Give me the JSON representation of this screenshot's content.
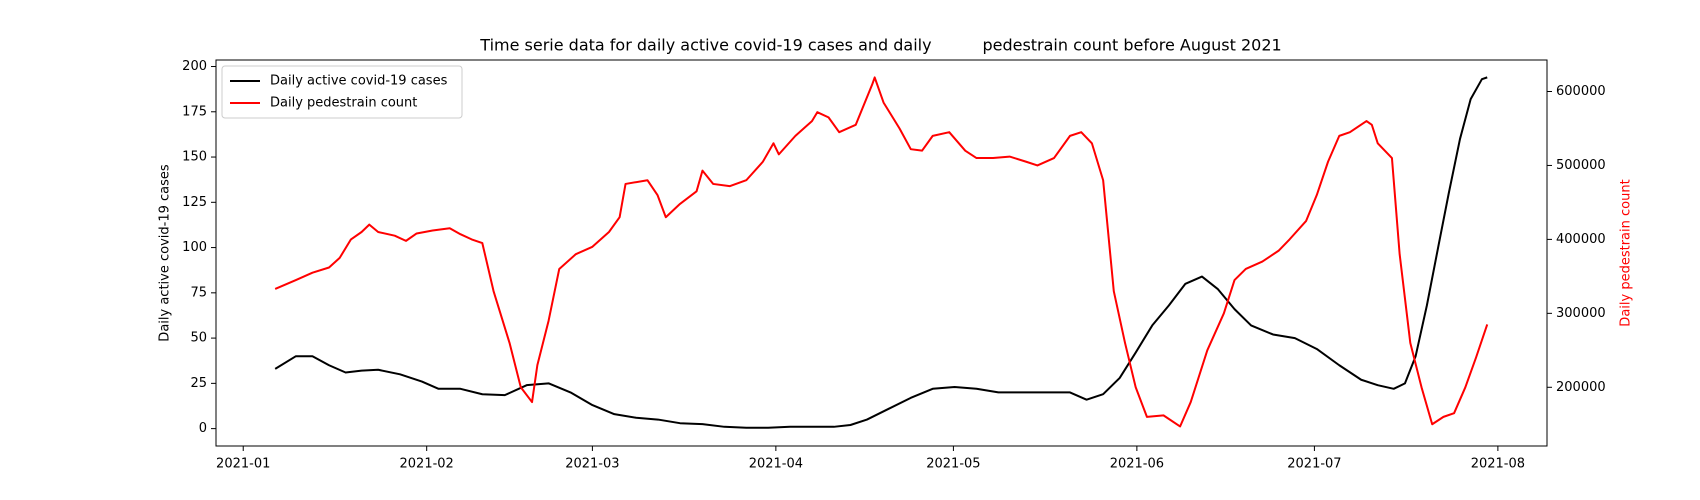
{
  "chart_data": {
    "type": "line",
    "title": "Time serie data for daily active covid-19 cases and daily          pedestrain count before August 2021",
    "y_label": "Daily active covid-19 cases",
    "y2_label": "Daily pedestrain count",
    "xlim": [
      -4.6,
      220.3
    ],
    "xticks": [
      {
        "value": 0,
        "label": "2021-01"
      },
      {
        "value": 31,
        "label": "2021-02"
      },
      {
        "value": 59,
        "label": "2021-03"
      },
      {
        "value": 90,
        "label": "2021-04"
      },
      {
        "value": 120,
        "label": "2021-05"
      },
      {
        "value": 151,
        "label": "2021-06"
      },
      {
        "value": 181,
        "label": "2021-07"
      },
      {
        "value": 212,
        "label": "2021-08"
      }
    ],
    "ylim": [
      -9.6,
      203.6
    ],
    "yticks": [
      0,
      25,
      50,
      75,
      100,
      125,
      150,
      175,
      200
    ],
    "y2lim": [
      120600,
      642600
    ],
    "y2ticks": [
      200000,
      300000,
      400000,
      500000,
      600000
    ],
    "grid": false,
    "legend": "upper left",
    "series": [
      {
        "name": "Daily active covid-19 cases",
        "color": "#000000",
        "x": [
          5.4,
          8.9,
          11.7,
          14.5,
          17.3,
          20.0,
          22.8,
          26.5,
          30.2,
          33.0,
          36.7,
          40.4,
          44.2,
          47.9,
          51.6,
          55.3,
          59.0,
          62.7,
          66.4,
          70.1,
          73.8,
          77.6,
          81.3,
          85.0,
          88.7,
          92.4,
          96.1,
          99.8,
          102.6,
          105.4,
          109.1,
          112.8,
          116.5,
          120.2,
          123.9,
          127.6,
          131.4,
          135.1,
          139.7,
          142.5,
          145.3,
          148.1,
          150.8,
          153.6,
          156.4,
          159.2,
          162.0,
          164.7,
          167.5,
          170.3,
          174.0,
          177.7,
          181.4,
          185.2,
          188.9,
          191.7,
          194.4,
          196.3,
          198.1,
          200.0,
          201.9,
          203.7,
          205.6,
          207.4,
          209.3,
          210.2
        ],
        "values": [
          33,
          40,
          40,
          35,
          31,
          32,
          32.5,
          30,
          26,
          22,
          22,
          19,
          18.5,
          24,
          25,
          20,
          13,
          8,
          6,
          5,
          3,
          2.5,
          1,
          0.5,
          0.5,
          1,
          1,
          1,
          2,
          5,
          11,
          17,
          22,
          23,
          22,
          20,
          20,
          20,
          20,
          16,
          19,
          28,
          42,
          57,
          68,
          80,
          84,
          77,
          66,
          57,
          52,
          50,
          44,
          35,
          27,
          24,
          22,
          25,
          40,
          68,
          100,
          130,
          160,
          182,
          193,
          194
        ]
      },
      {
        "name": "Daily pedestrain count",
        "color": "#ff0000",
        "axis": "y2",
        "x": [
          5.4,
          8.9,
          11.7,
          14.5,
          16.3,
          18.2,
          20.0,
          21.3,
          22.8,
          25.6,
          27.5,
          29.3,
          32.0,
          34.9,
          36.7,
          38.6,
          40.4,
          42.3,
          45.0,
          46.9,
          48.8,
          49.7,
          51.6,
          53.4,
          56.2,
          59.0,
          61.8,
          63.6,
          64.6,
          68.3,
          70.0,
          71.4,
          73.8,
          76.6,
          77.6,
          79.4,
          82.2,
          85.0,
          87.8,
          89.6,
          90.5,
          93.3,
          96.1,
          97.0,
          98.9,
          100.7,
          103.5,
          106.3,
          106.7,
          108.2,
          110.9,
          112.8,
          114.7,
          116.5,
          119.3,
          122.0,
          123.9,
          126.7,
          129.5,
          132.3,
          134.2,
          137.0,
          139.7,
          141.6,
          143.4,
          145.3,
          147.1,
          149.0,
          150.8,
          152.7,
          155.5,
          158.3,
          160.1,
          162.9,
          165.7,
          167.5,
          169.4,
          172.2,
          175.0,
          176.8,
          179.6,
          181.4,
          183.3,
          185.2,
          187.0,
          189.8,
          190.7,
          191.7,
          194.1,
          195.4,
          197.2,
          199.1,
          200.9,
          202.8,
          204.6,
          206.5,
          208.3,
          210.2
        ],
        "values": [
          333000,
          345000,
          355000,
          362000,
          375000,
          400000,
          410000,
          420000,
          410000,
          405000,
          398000,
          408000,
          412000,
          415000,
          407000,
          400000,
          395000,
          330000,
          260000,
          200000,
          180000,
          230000,
          290000,
          360000,
          380000,
          390000,
          410000,
          430000,
          475000,
          480000,
          460000,
          430000,
          448000,
          465000,
          493000,
          475000,
          472000,
          480000,
          505000,
          530000,
          515000,
          540000,
          560000,
          572000,
          565000,
          545000,
          555000,
          610000,
          619000,
          585000,
          550000,
          522000,
          520000,
          540000,
          545000,
          520000,
          510000,
          510000,
          512000,
          505000,
          500000,
          510000,
          540000,
          545000,
          530000,
          480000,
          330000,
          260000,
          200000,
          160000,
          162000,
          147000,
          180000,
          250000,
          300000,
          345000,
          360000,
          370000,
          385000,
          400000,
          425000,
          460000,
          505000,
          540000,
          545000,
          560000,
          555000,
          530000,
          510000,
          380000,
          260000,
          200000,
          150000,
          160000,
          165000,
          200000,
          240000,
          285000
        ]
      }
    ]
  }
}
